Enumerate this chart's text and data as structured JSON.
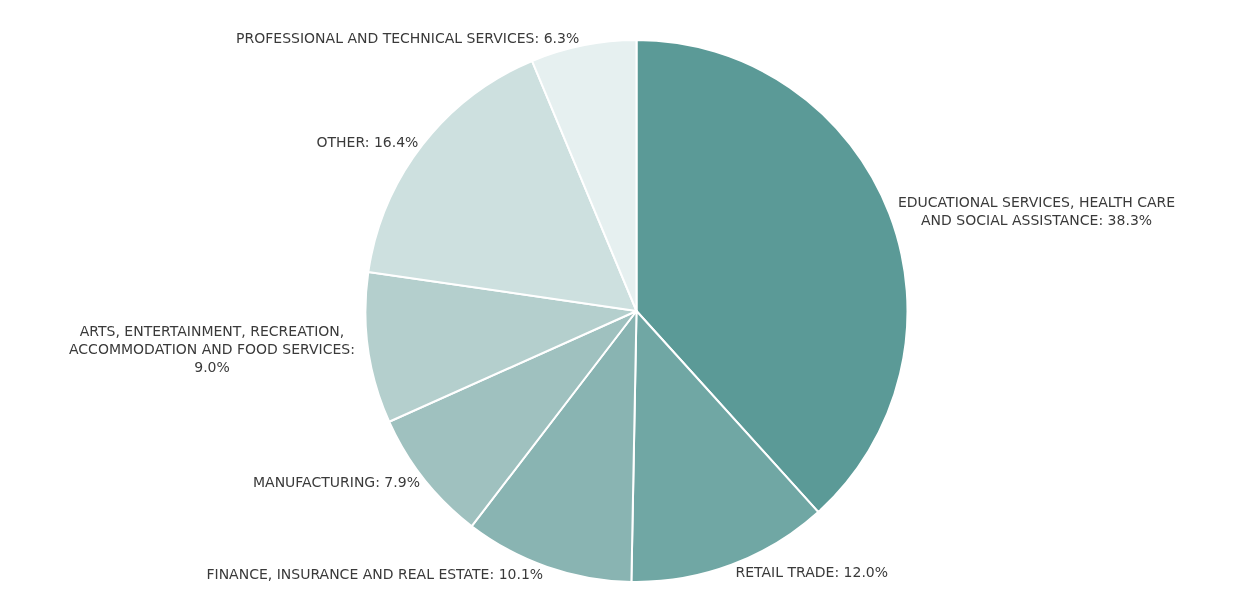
{
  "chart_data": {
    "type": "pie",
    "categories": [
      "EDUCATIONAL SERVICES, HEALTH CARE AND SOCIAL ASSISTANCE: 38.3%",
      "RETAIL TRADE: 12.0%",
      "FINANCE, INSURANCE AND REAL ESTATE: 10.1%",
      "MANUFACTURING: 7.9%",
      "ARTS, ENTERTAINMENT, RECREATION, ACCOMMODATION AND FOOD SERVICES: 9.0%",
      "OTHER: 16.4%",
      "PROFESSIONAL AND TECHNICAL SERVICES: 6.3%"
    ],
    "values": [
      38.3,
      12.0,
      10.1,
      7.9,
      9.0,
      16.4,
      6.3
    ],
    "colors": [
      "#5b9a97",
      "#70a7a4",
      "#89b4b2",
      "#9fc1bf",
      "#b4cfcd",
      "#cde0df",
      "#e6f0f0"
    ],
    "legend": false
  }
}
